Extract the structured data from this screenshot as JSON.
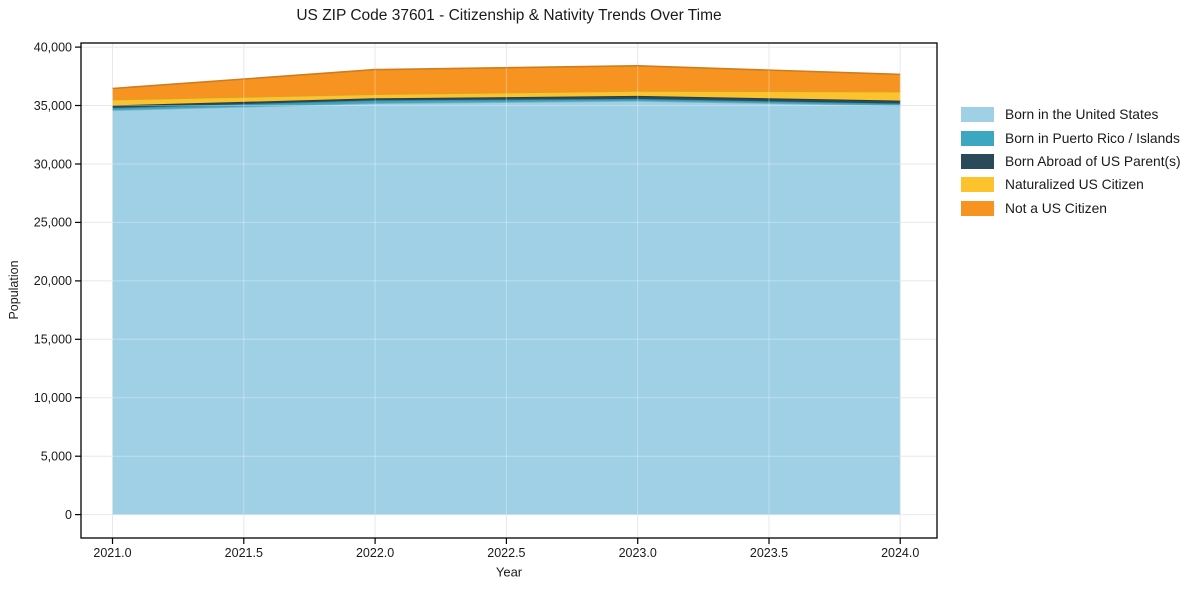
{
  "chart_data": {
    "type": "area",
    "stacked": true,
    "title": "US ZIP Code 37601 - Citizenship & Nativity Trends Over Time",
    "xlabel": "Year",
    "ylabel": "Population",
    "x": [
      2021,
      2022,
      2023,
      2024
    ],
    "series": [
      {
        "name": "Born in the United States",
        "color": "#9fd0e6",
        "values": [
          34600,
          35200,
          35400,
          35000
        ]
      },
      {
        "name": "Born in Puerto Rico / Islands",
        "color": "#3ba7c1",
        "values": [
          200,
          250,
          170,
          170
        ]
      },
      {
        "name": "Born Abroad of US Parent(s)",
        "color": "#2a4a5a",
        "values": [
          210,
          170,
          250,
          250
        ]
      },
      {
        "name": "Naturalized US Citizen",
        "color": "#fcc32d",
        "values": [
          500,
          350,
          430,
          770
        ]
      },
      {
        "name": "Not a US Citizen",
        "color": "#f79421",
        "values": [
          950,
          2100,
          2150,
          1470
        ]
      }
    ],
    "xlim": [
      2020.88,
      2024.14
    ],
    "ylim": [
      -2000,
      40350
    ],
    "x_ticks": [
      2021.0,
      2021.5,
      2022.0,
      2022.5,
      2023.0,
      2023.5,
      2024.0
    ],
    "y_ticks": [
      0,
      5000,
      10000,
      15000,
      20000,
      25000,
      30000,
      35000,
      40000
    ],
    "grid": true,
    "legend_position": "right",
    "colors": {
      "grid": "#e8e8e8",
      "spine": "#000000",
      "background": "#ffffff",
      "text": "#1a1a1a"
    }
  }
}
